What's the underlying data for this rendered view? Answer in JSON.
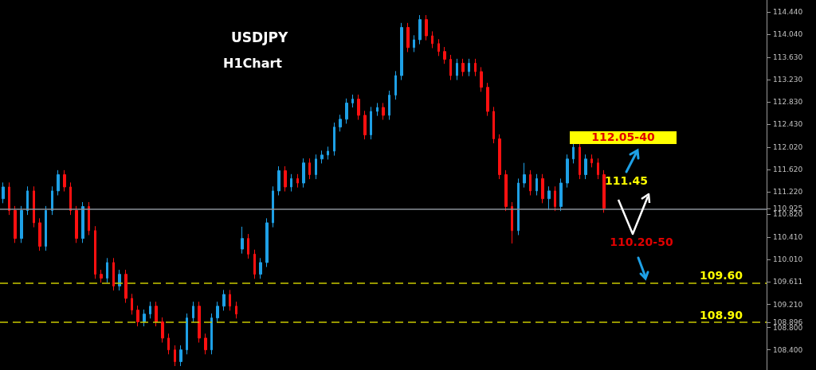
{
  "chart_data": {
    "type": "candlestick",
    "title": "USDJPY",
    "subtitle": "H1Chart",
    "categories": [
      null,
      null,
      null,
      null,
      null,
      null,
      null,
      null,
      null,
      null,
      null,
      null,
      null,
      null,
      null,
      null,
      null,
      null,
      null,
      null,
      null,
      null,
      null,
      null,
      null,
      null,
      null,
      null,
      null,
      null,
      null,
      null,
      null,
      null,
      null,
      null,
      null,
      null,
      null,
      null,
      null,
      null,
      null,
      null,
      null,
      null,
      null,
      null,
      null,
      null,
      null,
      null,
      null,
      null,
      null,
      null,
      null,
      null,
      null,
      null,
      null,
      null,
      null,
      null,
      null,
      null,
      null,
      null,
      null,
      null,
      null,
      null,
      null,
      null,
      null,
      null,
      null,
      null,
      null,
      null,
      null,
      null,
      null,
      null,
      null,
      null,
      null,
      null,
      null,
      null,
      null,
      null,
      null,
      null,
      null,
      null,
      null,
      null,
      null,
      null,
      null,
      null,
      null,
      null,
      null,
      null,
      null,
      null,
      null,
      null,
      null,
      null,
      null,
      null,
      null,
      null,
      null,
      null,
      null,
      null,
      null,
      null,
      null,
      null,
      null
    ],
    "ohlc": [
      [
        111.1,
        111.39,
        111.02,
        111.31
      ],
      [
        111.31,
        111.39,
        110.81,
        110.89
      ],
      [
        110.89,
        110.97,
        110.31,
        110.39
      ],
      [
        110.39,
        110.97,
        110.31,
        110.89
      ],
      [
        110.89,
        111.32,
        110.81,
        111.24
      ],
      [
        111.24,
        111.32,
        110.59,
        110.67
      ],
      [
        110.67,
        110.75,
        110.17,
        110.25
      ],
      [
        110.25,
        110.97,
        110.17,
        110.89
      ],
      [
        110.89,
        111.32,
        110.81,
        111.24
      ],
      [
        111.24,
        111.61,
        111.16,
        111.53
      ],
      [
        111.53,
        111.61,
        111.23,
        111.31
      ],
      [
        111.31,
        111.39,
        110.81,
        110.89
      ],
      [
        110.89,
        110.97,
        110.31,
        110.39
      ],
      [
        110.39,
        111.04,
        110.31,
        110.96
      ],
      [
        110.96,
        111.04,
        110.45,
        110.53
      ],
      [
        110.53,
        110.61,
        109.67,
        109.75
      ],
      [
        109.75,
        109.83,
        109.6,
        109.68
      ],
      [
        109.68,
        110.04,
        109.6,
        109.96
      ],
      [
        109.96,
        110.04,
        109.46,
        109.54
      ],
      [
        109.54,
        109.83,
        109.46,
        109.75
      ],
      [
        109.75,
        109.83,
        109.24,
        109.32
      ],
      [
        109.32,
        109.4,
        109.03,
        109.11
      ],
      [
        109.11,
        109.19,
        108.82,
        108.9
      ],
      [
        108.9,
        109.12,
        108.82,
        109.04
      ],
      [
        109.04,
        109.26,
        108.96,
        109.18
      ],
      [
        109.18,
        109.26,
        108.82,
        108.9
      ],
      [
        108.9,
        108.98,
        108.53,
        108.61
      ],
      [
        108.61,
        108.69,
        108.32,
        108.4
      ],
      [
        108.4,
        108.48,
        108.11,
        108.19
      ],
      [
        108.19,
        108.48,
        108.11,
        108.4
      ],
      [
        108.4,
        109.05,
        108.32,
        108.97
      ],
      [
        108.97,
        109.26,
        108.89,
        109.18
      ],
      [
        109.18,
        109.26,
        108.53,
        108.61
      ],
      [
        108.61,
        108.69,
        108.32,
        108.4
      ],
      [
        108.4,
        109.05,
        108.32,
        108.97
      ],
      [
        108.97,
        109.26,
        108.89,
        109.18
      ],
      [
        109.18,
        109.47,
        109.1,
        109.39
      ],
      [
        109.39,
        109.47,
        109.1,
        109.18
      ],
      [
        109.18,
        109.26,
        108.96,
        109.04
      ],
      [
        110.2,
        110.6,
        110.12,
        110.39
      ],
      [
        110.39,
        110.47,
        110.03,
        110.11
      ],
      [
        110.11,
        110.19,
        109.67,
        109.75
      ],
      [
        109.75,
        110.04,
        109.67,
        109.96
      ],
      [
        109.96,
        110.75,
        109.88,
        110.67
      ],
      [
        110.67,
        111.32,
        110.59,
        111.24
      ],
      [
        111.24,
        111.68,
        111.16,
        111.6
      ],
      [
        111.6,
        111.68,
        111.23,
        111.31
      ],
      [
        111.31,
        111.54,
        111.23,
        111.46
      ],
      [
        111.46,
        111.54,
        111.3,
        111.38
      ],
      [
        111.38,
        111.82,
        111.3,
        111.74
      ],
      [
        111.74,
        111.82,
        111.45,
        111.53
      ],
      [
        111.53,
        111.89,
        111.45,
        111.81
      ],
      [
        111.81,
        111.96,
        111.73,
        111.88
      ],
      [
        111.88,
        112.03,
        111.8,
        111.95
      ],
      [
        111.95,
        112.46,
        111.87,
        112.38
      ],
      [
        112.38,
        112.6,
        112.3,
        112.52
      ],
      [
        112.52,
        112.89,
        112.44,
        112.81
      ],
      [
        112.81,
        112.96,
        112.73,
        112.88
      ],
      [
        112.88,
        112.96,
        112.51,
        112.59
      ],
      [
        112.59,
        112.67,
        112.16,
        112.24
      ],
      [
        112.24,
        112.74,
        112.16,
        112.66
      ],
      [
        112.66,
        112.81,
        112.58,
        112.73
      ],
      [
        112.73,
        112.81,
        112.51,
        112.59
      ],
      [
        112.59,
        113.03,
        112.51,
        112.95
      ],
      [
        112.95,
        113.38,
        112.87,
        113.3
      ],
      [
        113.3,
        114.24,
        113.22,
        114.16
      ],
      [
        114.16,
        114.24,
        113.72,
        113.8
      ],
      [
        113.8,
        114.02,
        113.72,
        113.94
      ],
      [
        113.94,
        114.38,
        113.86,
        114.3
      ],
      [
        114.3,
        114.38,
        113.93,
        114.01
      ],
      [
        114.01,
        114.09,
        113.79,
        113.87
      ],
      [
        113.87,
        113.95,
        113.65,
        113.73
      ],
      [
        113.73,
        113.81,
        113.51,
        113.59
      ],
      [
        113.59,
        113.67,
        113.22,
        113.3
      ],
      [
        113.3,
        113.6,
        113.22,
        113.52
      ],
      [
        113.52,
        113.6,
        113.29,
        113.37
      ],
      [
        113.37,
        113.6,
        113.29,
        113.52
      ],
      [
        113.52,
        113.6,
        113.29,
        113.37
      ],
      [
        113.37,
        113.45,
        113.01,
        113.09
      ],
      [
        113.09,
        113.17,
        112.58,
        112.66
      ],
      [
        112.66,
        112.74,
        112.09,
        112.17
      ],
      [
        112.17,
        112.25,
        111.45,
        111.53
      ],
      [
        111.53,
        111.61,
        110.88,
        110.96
      ],
      [
        110.96,
        111.04,
        110.3,
        110.53
      ],
      [
        110.53,
        111.46,
        110.45,
        111.38
      ],
      [
        111.38,
        111.74,
        111.3,
        111.53
      ],
      [
        111.53,
        111.61,
        111.16,
        111.24
      ],
      [
        111.24,
        111.54,
        111.16,
        111.46
      ],
      [
        111.46,
        111.54,
        111.02,
        111.1
      ],
      [
        111.1,
        111.32,
        110.9,
        111.24
      ],
      [
        111.24,
        111.32,
        110.88,
        110.96
      ],
      [
        110.96,
        111.46,
        110.88,
        111.38
      ],
      [
        111.38,
        111.89,
        111.3,
        111.81
      ],
      [
        111.81,
        112.1,
        111.73,
        112.02
      ],
      [
        112.02,
        112.1,
        111.45,
        111.53
      ],
      [
        111.53,
        111.89,
        111.45,
        111.81
      ],
      [
        111.81,
        111.89,
        111.66,
        111.74
      ],
      [
        111.74,
        111.82,
        111.45,
        111.53
      ],
      [
        111.53,
        111.61,
        110.85,
        110.93
      ],
      null,
      null,
      null,
      null,
      null,
      null,
      null,
      null,
      null,
      null,
      null,
      null,
      null,
      null,
      null,
      null,
      null,
      null,
      null,
      null,
      null,
      null,
      null,
      null,
      null,
      null
    ],
    "ylim": [
      108.04,
      114.65
    ],
    "yticks": [
      {
        "value": 108.4,
        "label": "108.400"
      },
      {
        "value": 108.8,
        "label": "108.800"
      },
      {
        "value": 108.896,
        "label": "108.896"
      },
      {
        "value": 109.611,
        "label": "109.611"
      },
      {
        "value": 110.925,
        "label": "110.925"
      },
      {
        "value": 109.21,
        "label": "109.210"
      },
      {
        "value": 110.01,
        "label": "110.010"
      },
      {
        "value": 110.41,
        "label": "110.410"
      },
      {
        "value": 110.82,
        "label": "110.820"
      },
      {
        "value": 111.22,
        "label": "111.220"
      },
      {
        "value": 111.62,
        "label": "111.620"
      },
      {
        "value": 112.02,
        "label": "112.020"
      },
      {
        "value": 112.43,
        "label": "112.430"
      },
      {
        "value": 112.83,
        "label": "112.830"
      },
      {
        "value": 113.23,
        "label": "113.230"
      },
      {
        "value": 113.63,
        "label": "113.630"
      },
      {
        "value": 114.04,
        "label": "114.040"
      },
      {
        "value": 114.44,
        "label": "114.440"
      }
    ],
    "tick_labels": "y",
    "grid": false,
    "ref_lines": [
      {
        "axis": "y",
        "value": 110.925,
        "label": null,
        "color": "#8a9098",
        "line_style": "solid"
      },
      {
        "axis": "y",
        "value": 109.6,
        "label": "109.60",
        "color": "#c8c800",
        "line_style": "dashed"
      },
      {
        "axis": "y",
        "value": 108.9,
        "label": "108.90",
        "color": "#c8c800",
        "line_style": "dashed"
      }
    ],
    "annotations": [
      "112.05-40",
      "111.45",
      "110.20-50"
    ]
  }
}
